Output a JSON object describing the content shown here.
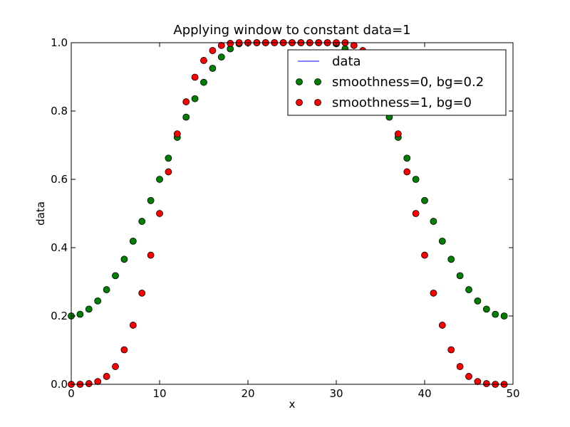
{
  "chart_data": {
    "type": "scatter",
    "title": "Applying window to constant data=1",
    "xlabel": "x",
    "ylabel": "data",
    "xlim": [
      0,
      50
    ],
    "ylim": [
      0.0,
      1.0
    ],
    "x_ticks": [
      "0",
      "10",
      "20",
      "30",
      "40",
      "50"
    ],
    "y_ticks": [
      "0.0",
      "0.2",
      "0.4",
      "0.6",
      "0.8",
      "1.0"
    ],
    "grid": false,
    "legend_position": "top-right",
    "legend": [
      "data",
      "smoothness=0, bg=0.2",
      "smoothness=1, bg=0"
    ],
    "x": [
      0,
      1,
      2,
      3,
      4,
      5,
      6,
      7,
      8,
      9,
      10,
      11,
      12,
      13,
      14,
      15,
      16,
      17,
      18,
      19,
      20,
      21,
      22,
      23,
      24,
      25,
      26,
      27,
      28,
      29,
      30,
      31,
      32,
      33,
      34,
      35,
      36,
      37,
      38,
      39,
      40,
      41,
      42,
      43,
      44,
      45,
      46,
      47,
      48,
      49
    ],
    "series": [
      {
        "name": "data",
        "style": "line",
        "color": "#0000ff",
        "values": [
          1,
          1,
          1,
          1,
          1,
          1,
          1,
          1,
          1,
          1,
          1,
          1,
          1,
          1,
          1,
          1,
          1,
          1,
          1,
          1,
          1,
          1,
          1,
          1,
          1,
          1,
          1,
          1,
          1,
          1,
          1,
          1,
          1,
          1,
          1,
          1,
          1,
          1,
          1,
          1,
          1,
          1,
          1,
          1,
          1,
          1,
          1,
          1,
          1,
          1
        ]
      },
      {
        "name": "smoothness=0, bg=0.2",
        "style": "marker",
        "color": "#008000",
        "values": [
          0.2,
          0.205,
          0.22,
          0.244,
          0.277,
          0.318,
          0.366,
          0.419,
          0.477,
          0.538,
          0.6,
          0.662,
          0.723,
          0.782,
          0.836,
          0.884,
          0.925,
          0.958,
          0.982,
          0.997,
          1,
          1,
          1,
          1,
          1,
          1,
          1,
          1,
          1,
          1,
          0.997,
          0.982,
          0.958,
          0.925,
          0.884,
          0.836,
          0.782,
          0.723,
          0.662,
          0.6,
          0.538,
          0.477,
          0.419,
          0.366,
          0.318,
          0.277,
          0.244,
          0.22,
          0.205,
          0.2
        ]
      },
      {
        "name": "smoothness=1, bg=0",
        "style": "marker",
        "color": "#ff0000",
        "values": [
          0,
          0,
          0.002,
          0.008,
          0.023,
          0.052,
          0.101,
          0.173,
          0.267,
          0.378,
          0.5,
          0.622,
          0.733,
          0.827,
          0.899,
          0.948,
          0.977,
          0.992,
          0.998,
          1,
          1,
          1,
          1,
          1,
          1,
          1,
          1,
          1,
          1,
          1,
          1,
          1,
          0.992,
          0.977,
          0.948,
          0.899,
          0.827,
          0.733,
          0.622,
          0.5,
          0.378,
          0.267,
          0.173,
          0.101,
          0.052,
          0.023,
          0.008,
          0.002,
          0,
          0
        ]
      }
    ]
  }
}
